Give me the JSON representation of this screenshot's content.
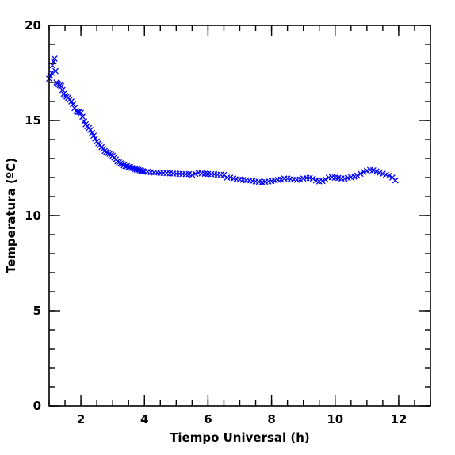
{
  "chart_data": {
    "type": "scatter",
    "title": "",
    "xlabel": "Tiempo Universal (h)",
    "ylabel": "Temperatura (ºC)",
    "xlim": [
      1,
      13
    ],
    "ylim": [
      0,
      20
    ],
    "x_major_ticks": [
      2,
      4,
      6,
      8,
      10,
      12
    ],
    "x_minor_step": 0.5,
    "y_major_ticks": [
      0,
      5,
      10,
      15,
      20
    ],
    "y_minor_step": 1,
    "grid": false,
    "marker": "x",
    "color": "#0000ff",
    "series": [
      {
        "points": [
          [
            1.0,
            17.2
          ],
          [
            1.04,
            17.35
          ],
          [
            1.08,
            17.5
          ],
          [
            1.1,
            17.9
          ],
          [
            1.14,
            18.1
          ],
          [
            1.17,
            18.25
          ],
          [
            1.2,
            17.6
          ],
          [
            1.23,
            17.0
          ],
          [
            1.26,
            16.95
          ],
          [
            1.3,
            16.9
          ],
          [
            1.34,
            16.85
          ],
          [
            1.38,
            16.8
          ],
          [
            1.42,
            16.6
          ],
          [
            1.46,
            16.4
          ],
          [
            1.5,
            16.3
          ],
          [
            1.55,
            16.25
          ],
          [
            1.6,
            16.2
          ],
          [
            1.65,
            16.1
          ],
          [
            1.7,
            16.0
          ],
          [
            1.75,
            15.85
          ],
          [
            1.8,
            15.65
          ],
          [
            1.85,
            15.5
          ],
          [
            1.9,
            15.45
          ],
          [
            1.95,
            15.45
          ],
          [
            2.0,
            15.4
          ],
          [
            2.05,
            15.2
          ],
          [
            2.1,
            14.95
          ],
          [
            2.15,
            14.8
          ],
          [
            2.2,
            14.7
          ],
          [
            2.25,
            14.6
          ],
          [
            2.3,
            14.5
          ],
          [
            2.35,
            14.35
          ],
          [
            2.4,
            14.2
          ],
          [
            2.45,
            14.05
          ],
          [
            2.5,
            13.9
          ],
          [
            2.55,
            13.8
          ],
          [
            2.6,
            13.7
          ],
          [
            2.65,
            13.6
          ],
          [
            2.7,
            13.5
          ],
          [
            2.75,
            13.4
          ],
          [
            2.8,
            13.35
          ],
          [
            2.85,
            13.3
          ],
          [
            2.9,
            13.25
          ],
          [
            2.95,
            13.2
          ],
          [
            3.0,
            13.15
          ],
          [
            3.05,
            13.05
          ],
          [
            3.1,
            12.95
          ],
          [
            3.15,
            12.85
          ],
          [
            3.2,
            12.8
          ],
          [
            3.25,
            12.75
          ],
          [
            3.3,
            12.7
          ],
          [
            3.35,
            12.65
          ],
          [
            3.4,
            12.6
          ],
          [
            3.45,
            12.6
          ],
          [
            3.5,
            12.55
          ],
          [
            3.55,
            12.55
          ],
          [
            3.6,
            12.5
          ],
          [
            3.65,
            12.5
          ],
          [
            3.7,
            12.45
          ],
          [
            3.75,
            12.42
          ],
          [
            3.8,
            12.4
          ],
          [
            3.85,
            12.38
          ],
          [
            3.9,
            12.35
          ],
          [
            3.95,
            12.33
          ],
          [
            4.0,
            12.32
          ],
          [
            4.1,
            12.3
          ],
          [
            4.2,
            12.28
          ],
          [
            4.3,
            12.27
          ],
          [
            4.4,
            12.26
          ],
          [
            4.5,
            12.25
          ],
          [
            4.6,
            12.24
          ],
          [
            4.7,
            12.23
          ],
          [
            4.8,
            12.22
          ],
          [
            4.9,
            12.21
          ],
          [
            5.0,
            12.2
          ],
          [
            5.1,
            12.2
          ],
          [
            5.2,
            12.19
          ],
          [
            5.3,
            12.18
          ],
          [
            5.4,
            12.18
          ],
          [
            5.5,
            12.15
          ],
          [
            5.6,
            12.2
          ],
          [
            5.7,
            12.25
          ],
          [
            5.8,
            12.22
          ],
          [
            5.9,
            12.2
          ],
          [
            6.0,
            12.19
          ],
          [
            6.1,
            12.18
          ],
          [
            6.2,
            12.17
          ],
          [
            6.3,
            12.16
          ],
          [
            6.4,
            12.15
          ],
          [
            6.5,
            12.14
          ],
          [
            6.6,
            12.0
          ],
          [
            6.7,
            12.0
          ],
          [
            6.8,
            11.95
          ],
          [
            6.9,
            11.92
          ],
          [
            7.0,
            11.9
          ],
          [
            7.1,
            11.88
          ],
          [
            7.2,
            11.86
          ],
          [
            7.3,
            11.85
          ],
          [
            7.4,
            11.82
          ],
          [
            7.5,
            11.8
          ],
          [
            7.6,
            11.78
          ],
          [
            7.7,
            11.75
          ],
          [
            7.8,
            11.78
          ],
          [
            7.9,
            11.8
          ],
          [
            8.0,
            11.82
          ],
          [
            8.1,
            11.85
          ],
          [
            8.2,
            11.88
          ],
          [
            8.3,
            11.9
          ],
          [
            8.4,
            11.95
          ],
          [
            8.5,
            11.95
          ],
          [
            8.6,
            11.92
          ],
          [
            8.7,
            11.9
          ],
          [
            8.8,
            11.88
          ],
          [
            8.9,
            11.9
          ],
          [
            9.0,
            11.95
          ],
          [
            9.1,
            11.98
          ],
          [
            9.2,
            11.98
          ],
          [
            9.3,
            11.95
          ],
          [
            9.4,
            11.85
          ],
          [
            9.5,
            11.8
          ],
          [
            9.6,
            11.82
          ],
          [
            9.7,
            11.9
          ],
          [
            9.8,
            12.0
          ],
          [
            9.9,
            12.02
          ],
          [
            10.0,
            12.0
          ],
          [
            10.1,
            11.98
          ],
          [
            10.2,
            11.95
          ],
          [
            10.3,
            11.95
          ],
          [
            10.4,
            11.98
          ],
          [
            10.5,
            12.02
          ],
          [
            10.6,
            12.05
          ],
          [
            10.7,
            12.1
          ],
          [
            10.8,
            12.2
          ],
          [
            10.9,
            12.3
          ],
          [
            11.0,
            12.35
          ],
          [
            11.1,
            12.4
          ],
          [
            11.2,
            12.38
          ],
          [
            11.3,
            12.32
          ],
          [
            11.4,
            12.25
          ],
          [
            11.5,
            12.2
          ],
          [
            11.6,
            12.15
          ],
          [
            11.7,
            12.1
          ],
          [
            11.8,
            12.0
          ],
          [
            11.9,
            11.85
          ]
        ]
      }
    ]
  }
}
